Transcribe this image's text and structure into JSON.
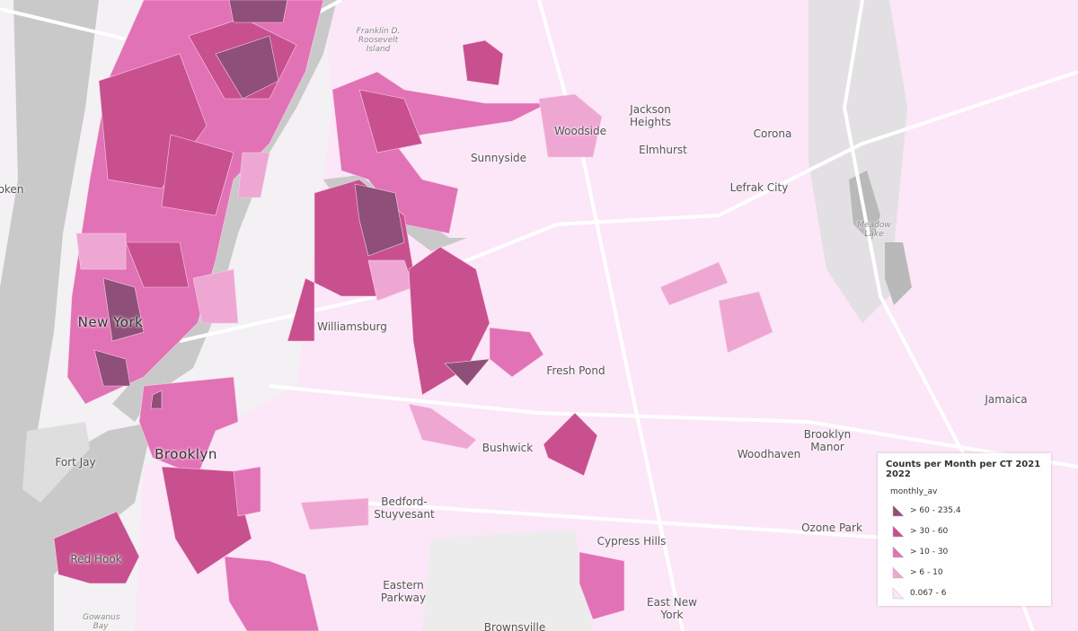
{
  "places": [
    "Franklin D. Roosevelt Island",
    "Jackson Heights",
    "Woodside",
    "Sunnyside",
    "Elmhurst",
    "Corona",
    "Lefrak City",
    "Meadow Lake",
    "oken",
    "Williamsburg",
    "New York",
    "Fresh Pond",
    "Bushwick",
    "Brooklyn",
    "Woodhaven",
    "Brooklyn Manor",
    "Jamaica",
    "Fort Jay",
    "Bedford-Stuyvesant",
    "Cypress Hills",
    "Ozone Park",
    "Eastern Parkway",
    "East New York",
    "Red Hook",
    "Gowanus Bay",
    "Brownsville"
  ],
  "legend": {
    "title": "Counts per Month per CT 2021 2022",
    "field": "monthly_av",
    "classes": [
      {
        "label": "> 60 - 235.4",
        "color": "#8e4f78"
      },
      {
        "label": "> 30 - 60",
        "color": "#c8508e"
      },
      {
        "label": "> 10 - 30",
        "color": "#e172b5"
      },
      {
        "label": "> 6 - 10",
        "color": "#eea7d3"
      },
      {
        "label": "0.067 - 6",
        "color": "#fbe6f7"
      }
    ]
  }
}
